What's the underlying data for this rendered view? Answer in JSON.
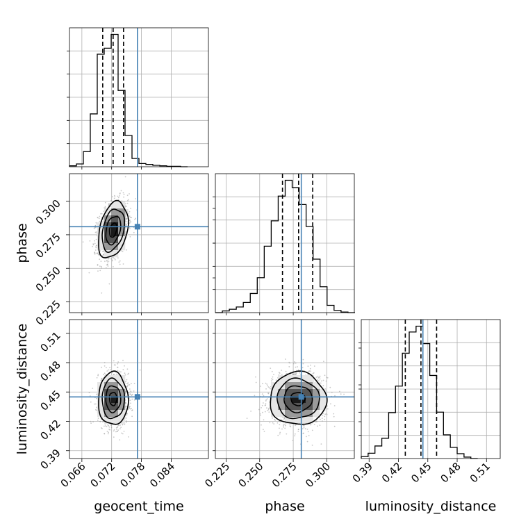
{
  "chart_data": {
    "type": "corner",
    "parameters": [
      "geocent_time",
      "phase",
      "luminosity_distance"
    ],
    "axis_labels": {
      "geocent_time": "geocent_time",
      "phase": "phase",
      "luminosity_distance": "luminosity_distance"
    },
    "ranges": {
      "geocent_time": [
        0.0635,
        0.0915
      ],
      "phase": [
        0.217,
        0.3205
      ],
      "luminosity_distance": [
        0.382,
        0.524
      ]
    },
    "ticks": {
      "geocent_time": [
        0.066,
        0.072,
        0.078,
        0.084
      ],
      "phase": [
        0.225,
        0.25,
        0.275,
        0.3
      ],
      "luminosity_distance": [
        0.39,
        0.42,
        0.45,
        0.48,
        0.51
      ]
    },
    "tick_labels": {
      "geocent_time": [
        "0.066",
        "0.072",
        "0.078",
        "0.084"
      ],
      "phase": [
        "0.225",
        "0.250",
        "0.275",
        "0.300"
      ],
      "luminosity_distance": [
        "0.39",
        "0.42",
        "0.45",
        "0.48",
        "0.51"
      ]
    },
    "truths": {
      "geocent_time": 0.0772,
      "phase": 0.281,
      "luminosity_distance": 0.445
    },
    "quantiles": {
      "geocent_time": [
        0.0702,
        0.0723,
        0.0744
      ],
      "phase": [
        0.267,
        0.279,
        0.2895
      ],
      "luminosity_distance": [
        0.427,
        0.443,
        0.459
      ]
    },
    "histograms": {
      "geocent_time": {
        "edges": [
          0.0635,
          0.0649,
          0.0663,
          0.0677,
          0.0691,
          0.0705,
          0.0719,
          0.0733,
          0.0747,
          0.0761,
          0.0775,
          0.0789,
          0.0803,
          0.0817,
          0.0831,
          0.0845,
          0.0859,
          0.0873
        ],
        "counts": [
          2,
          6,
          33,
          115,
          245,
          258,
          288,
          166,
          68,
          18,
          7,
          5,
          3,
          2,
          1,
          1,
          0
        ]
      },
      "phase": {
        "edges": [
          0.217,
          0.2222,
          0.2274,
          0.2326,
          0.2378,
          0.243,
          0.2482,
          0.2534,
          0.2586,
          0.2638,
          0.269,
          0.2742,
          0.2794,
          0.2846,
          0.2898,
          0.295,
          0.3002,
          0.3054,
          0.3106,
          0.3158,
          0.321
        ],
        "counts": [
          0,
          3,
          6,
          10,
          18,
          34,
          62,
          118,
          163,
          207,
          235,
          222,
          192,
          153,
          95,
          46,
          13,
          4,
          1,
          0
        ]
      },
      "luminosity_distance": {
        "edges": [
          0.382,
          0.389,
          0.396,
          0.403,
          0.41,
          0.417,
          0.424,
          0.431,
          0.438,
          0.445,
          0.452,
          0.459,
          0.466,
          0.473,
          0.48,
          0.487,
          0.494,
          0.501
        ],
        "counts": [
          4,
          11,
          26,
          42,
          95,
          150,
          218,
          262,
          274,
          238,
          172,
          96,
          49,
          23,
          10,
          3,
          0
        ]
      }
    },
    "contour_levels_sigma": [
      0.5,
      1.0,
      1.5,
      2.0
    ],
    "grid": true
  }
}
